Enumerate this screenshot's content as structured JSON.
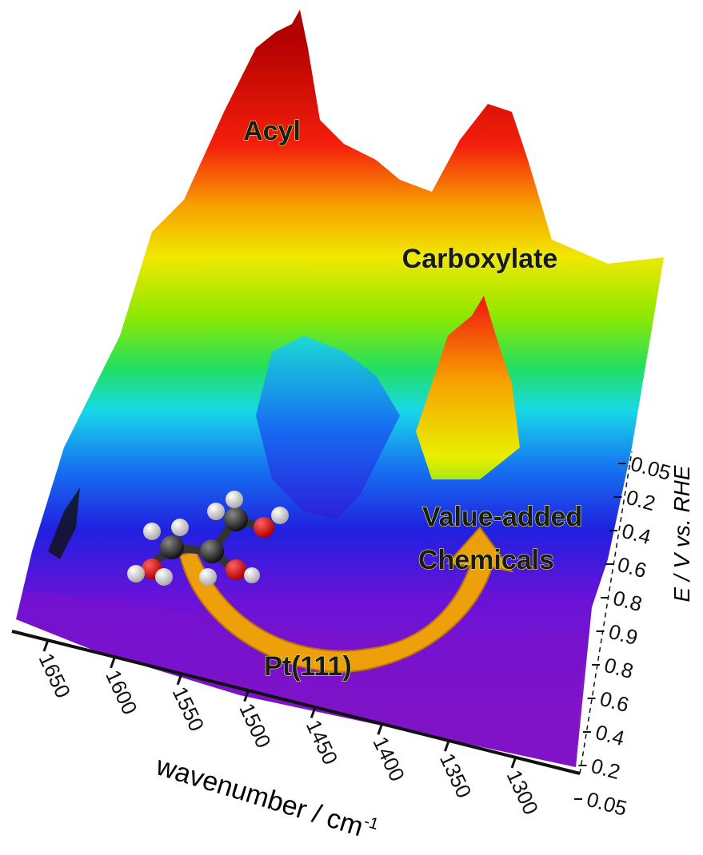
{
  "figure": {
    "annotations": {
      "acyl": "Acyl",
      "carboxylate": "Carboxylate",
      "product_line1": "Value-added",
      "product_line2": "Chemicals",
      "catalyst": "Pt(111)"
    },
    "x_axis": {
      "label": "wavenumber / cm",
      "label_superscript": "-1",
      "ticks": [
        "1650",
        "1600",
        "1550",
        "1500",
        "1450",
        "1400",
        "1350",
        "1300"
      ]
    },
    "y_axis": {
      "label": "E / V vs. RHE",
      "ticks": [
        "0.05",
        "0.2",
        "0.4",
        "0.6",
        "0.8",
        "0.9",
        "0.8",
        "0.6",
        "0.4",
        "0.2",
        "0.05"
      ]
    }
  }
}
